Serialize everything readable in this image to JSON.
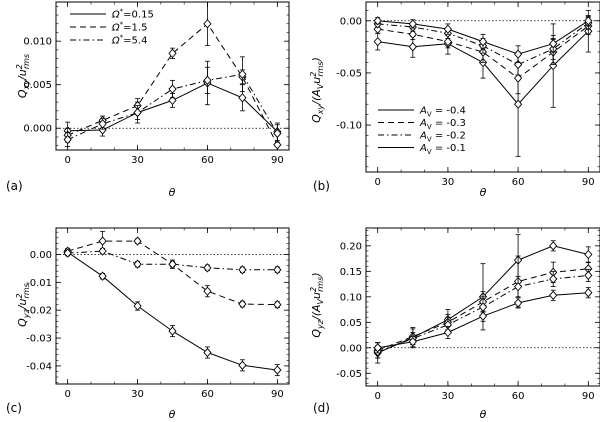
{
  "chart_data": [
    {
      "panel": "(a)",
      "type": "line",
      "xlabel": "θ",
      "ylabel_base": "Q",
      "ylabel_sub": "xy",
      "ylabel_rest": "/u",
      "ylabel_sup": "2",
      "ylabel_sub2": "rms",
      "xlim": [
        -5,
        95
      ],
      "ylim": [
        -0.0025,
        0.0145
      ],
      "xticks": [
        0,
        30,
        60,
        90
      ],
      "xtick_labels": [
        "0",
        "30",
        "60",
        "90"
      ],
      "yticks": [
        0.0,
        0.005,
        0.01
      ],
      "ytick_labels": [
        "0.000",
        "0.005",
        "0.010"
      ],
      "zero_line": true,
      "legend_position": "top-left",
      "series": [
        {
          "name": "Ω*=0.15",
          "legend_main": "Ω",
          "legend_sup": "*",
          "legend_rest": "=0.15",
          "dash": "solid",
          "x": [
            0,
            15,
            30,
            45,
            60,
            75,
            90
          ],
          "y": [
            -0.0003,
            -0.0002,
            0.0018,
            0.0032,
            0.0052,
            0.0035,
            -0.0004
          ],
          "err": [
            0.001,
            0.0007,
            0.0012,
            0.0008,
            0.0025,
            0.0015,
            0.001
          ]
        },
        {
          "name": "Ω*=1.5",
          "legend_main": "Ω",
          "legend_sup": "*",
          "legend_rest": "=1.5",
          "dash": "dash",
          "x": [
            0,
            15,
            30,
            45,
            60,
            75,
            90
          ],
          "y": [
            -0.0008,
            0.0009,
            0.0026,
            0.0086,
            0.012,
            0.0059,
            -0.0019
          ],
          "err": [
            0.0008,
            0.0005,
            0.0008,
            0.0006,
            0.0025,
            0.0008,
            0.0012
          ]
        },
        {
          "name": "Ω*=5.4",
          "legend_main": "Ω",
          "legend_sup": "*",
          "legend_rest": "=5.4",
          "dash": "dashdot",
          "x": [
            0,
            15,
            30,
            45,
            60,
            75,
            90
          ],
          "y": [
            -0.0013,
            0.0005,
            0.0018,
            0.0045,
            0.0055,
            0.0062,
            -0.0006
          ],
          "err": [
            0.0008,
            0.0006,
            0.0008,
            0.001,
            0.0015,
            0.002,
            0.001
          ]
        }
      ]
    },
    {
      "panel": "(b)",
      "type": "line",
      "xlabel": "θ",
      "ylabel_base": "Q",
      "ylabel_sub": "xy",
      "ylabel_rest": "/(A",
      "ylabel_sub_v": "V",
      "ylabel_rest2": "u",
      "ylabel_sup": "2",
      "ylabel_sub2": "rms",
      "ylabel_close": ")",
      "xlim": [
        -5,
        95
      ],
      "ylim": [
        -0.145,
        0.018
      ],
      "xticks": [
        0,
        30,
        60,
        90
      ],
      "xtick_labels": [
        "0",
        "30",
        "60",
        "90"
      ],
      "yticks": [
        -0.1,
        -0.05,
        0.0
      ],
      "ytick_labels": [
        "-0.10",
        "-0.05",
        "0.00"
      ],
      "zero_line": true,
      "legend_position": "center-left",
      "series": [
        {
          "name": "A_V = -0.4",
          "legend_main": "A",
          "legend_sub": "V",
          "legend_rest": " = -0.4",
          "dash": "solid",
          "x": [
            0,
            15,
            30,
            45,
            60,
            75,
            90
          ],
          "y": [
            -0.02,
            -0.025,
            -0.022,
            -0.04,
            -0.08,
            -0.043,
            -0.01
          ],
          "err": [
            0.008,
            0.01,
            0.01,
            0.015,
            0.05,
            0.04,
            0.02
          ]
        },
        {
          "name": "A_V = -0.3",
          "legend_main": "A",
          "legend_sub": "V",
          "legend_rest": " = -0.3",
          "dash": "dash",
          "x": [
            0,
            15,
            30,
            45,
            60,
            75,
            90
          ],
          "y": [
            -0.008,
            -0.013,
            -0.02,
            -0.03,
            -0.055,
            -0.03,
            -0.005
          ],
          "err": [
            0.004,
            0.005,
            0.006,
            0.01,
            0.015,
            0.012,
            0.008
          ]
        },
        {
          "name": "A_V = -0.2",
          "legend_main": "A",
          "legend_sub": "V",
          "legend_rest": " = -0.2",
          "dash": "dashdot",
          "x": [
            0,
            15,
            30,
            45,
            60,
            75,
            90
          ],
          "y": [
            -0.003,
            -0.006,
            -0.012,
            -0.024,
            -0.042,
            -0.027,
            -0.002
          ],
          "err": [
            0.003,
            0.004,
            0.005,
            0.007,
            0.01,
            0.01,
            0.006
          ]
        },
        {
          "name": "A_V = -0.1",
          "legend_main": "A",
          "legend_sub": "V",
          "legend_rest": " = -0.1",
          "dash": "solid",
          "x": [
            0,
            15,
            30,
            45,
            60,
            75,
            90
          ],
          "y": [
            0.0,
            -0.003,
            -0.008,
            -0.02,
            -0.032,
            -0.022,
            0.0
          ],
          "err": [
            0.003,
            0.004,
            0.005,
            0.007,
            0.008,
            0.008,
            0.005
          ]
        }
      ]
    },
    {
      "panel": "(c)",
      "type": "line",
      "xlabel": "θ",
      "ylabel_base": "Q",
      "ylabel_sub": "yz",
      "ylabel_rest": "/u",
      "ylabel_sup": "2",
      "ylabel_sub2": "rms",
      "xlim": [
        -5,
        95
      ],
      "ylim": [
        -0.0465,
        0.0095
      ],
      "xticks": [
        0,
        30,
        60,
        90
      ],
      "xtick_labels": [
        "0",
        "30",
        "60",
        "90"
      ],
      "yticks": [
        -0.04,
        -0.03,
        -0.02,
        -0.01,
        0.0
      ],
      "ytick_labels": [
        "-0.04",
        "-0.03",
        "-0.02",
        "-0.01",
        "0.00"
      ],
      "zero_line": true,
      "series": [
        {
          "name": "Ω*=0.15",
          "dash": "solid",
          "x": [
            0,
            15,
            30,
            45,
            60,
            75,
            90
          ],
          "y": [
            0.0008,
            -0.0078,
            -0.0185,
            -0.0275,
            -0.0352,
            -0.0398,
            -0.0415
          ],
          "err": [
            0.001,
            0.001,
            0.0015,
            0.002,
            0.002,
            0.002,
            0.002
          ]
        },
        {
          "name": "Ω*=1.5",
          "dash": "dash",
          "x": [
            0,
            15,
            30,
            45,
            60,
            75,
            90
          ],
          "y": [
            0.0012,
            0.0048,
            0.0048,
            -0.0035,
            -0.0132,
            -0.0178,
            -0.018
          ],
          "err": [
            0.001,
            0.0035,
            0.0008,
            0.0015,
            0.002,
            0.001,
            0.001
          ]
        },
        {
          "name": "Ω*=5.4",
          "dash": "dashdot",
          "x": [
            0,
            15,
            30,
            45,
            60,
            75,
            90
          ],
          "y": [
            0.0005,
            0.0012,
            -0.0035,
            -0.0035,
            -0.0048,
            -0.0055,
            -0.0055
          ],
          "err": [
            0.001,
            0.001,
            0.001,
            0.001,
            0.001,
            0.001,
            0.001
          ]
        }
      ]
    },
    {
      "panel": "(d)",
      "type": "line",
      "xlabel": "θ",
      "ylabel_base": "Q",
      "ylabel_sub": "yz",
      "ylabel_rest": "/(A",
      "ylabel_sub_v": "V",
      "ylabel_rest2": "u",
      "ylabel_sup": "2",
      "ylabel_sub2": "rms",
      "ylabel_close": ")",
      "xlim": [
        -5,
        95
      ],
      "ylim": [
        -0.075,
        0.235
      ],
      "xticks": [
        0,
        30,
        60,
        90
      ],
      "xtick_labels": [
        "0",
        "30",
        "60",
        "90"
      ],
      "yticks": [
        -0.05,
        0.0,
        0.05,
        0.1,
        0.15,
        0.2
      ],
      "ytick_labels": [
        "-0.05",
        "0.00",
        "0.05",
        "0.10",
        "0.15",
        "0.20"
      ],
      "zero_line": true,
      "series": [
        {
          "name": "A_V = -0.4",
          "dash": "solid",
          "x": [
            0,
            15,
            30,
            45,
            60,
            75,
            90
          ],
          "y": [
            -0.01,
            0.02,
            0.055,
            0.1,
            0.172,
            0.2,
            0.183
          ],
          "err": [
            0.02,
            0.02,
            0.02,
            0.065,
            0.05,
            0.01,
            0.015
          ]
        },
        {
          "name": "A_V = -0.3",
          "dash": "dash",
          "x": [
            0,
            15,
            30,
            45,
            60,
            75,
            90
          ],
          "y": [
            -0.005,
            0.022,
            0.05,
            0.09,
            0.13,
            0.148,
            0.155
          ],
          "err": [
            0.015,
            0.015,
            0.015,
            0.02,
            0.05,
            0.02,
            0.012
          ]
        },
        {
          "name": "A_V = -0.2",
          "dash": "dashdot",
          "x": [
            0,
            15,
            30,
            45,
            60,
            75,
            90
          ],
          "y": [
            -0.008,
            0.018,
            0.045,
            0.08,
            0.12,
            0.135,
            0.142
          ],
          "err": [
            0.012,
            0.012,
            0.015,
            0.02,
            0.02,
            0.015,
            0.012
          ]
        },
        {
          "name": "A_V = -0.1",
          "dash": "solid",
          "x": [
            0,
            15,
            30,
            45,
            60,
            75,
            90
          ],
          "y": [
            0.0,
            0.012,
            0.03,
            0.062,
            0.088,
            0.103,
            0.108
          ],
          "err": [
            0.01,
            0.01,
            0.012,
            0.01,
            0.01,
            0.01,
            0.01
          ]
        }
      ]
    }
  ]
}
